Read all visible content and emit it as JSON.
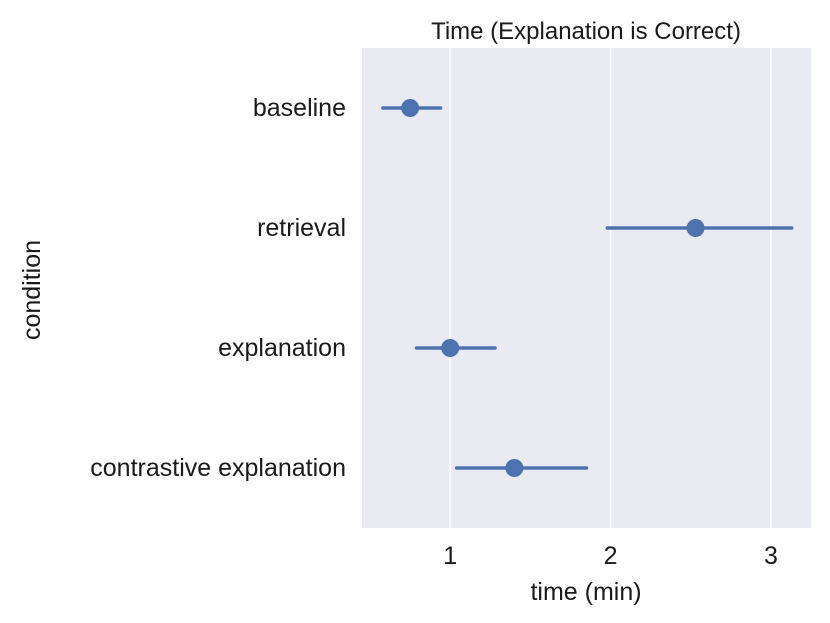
{
  "chart_data": {
    "type": "scatter",
    "subtype": "pointplot-with-error-bars",
    "title": "Time (Explanation is Correct)",
    "xlabel": "time (min)",
    "ylabel": "condition",
    "xlim": [
      0.45,
      3.25
    ],
    "xticks": [
      1,
      2,
      3
    ],
    "xtick_labels": [
      "1",
      "2",
      "3"
    ],
    "grid": "vertical",
    "categories": [
      "baseline",
      "retrieval",
      "explanation",
      "contrastive explanation"
    ],
    "series": [
      {
        "points": [
          {
            "condition": "baseline",
            "mean": 0.75,
            "ci_low": 0.58,
            "ci_high": 0.94
          },
          {
            "condition": "retrieval",
            "mean": 2.53,
            "ci_low": 1.98,
            "ci_high": 3.13
          },
          {
            "condition": "explanation",
            "mean": 1.0,
            "ci_low": 0.79,
            "ci_high": 1.28
          },
          {
            "condition": "contrastive explanation",
            "mean": 1.4,
            "ci_low": 1.04,
            "ci_high": 1.85
          }
        ]
      }
    ],
    "colors": {
      "point": "#4c72b0",
      "plot_background": "#eaeaf2",
      "gridline": "#ffffff"
    }
  }
}
